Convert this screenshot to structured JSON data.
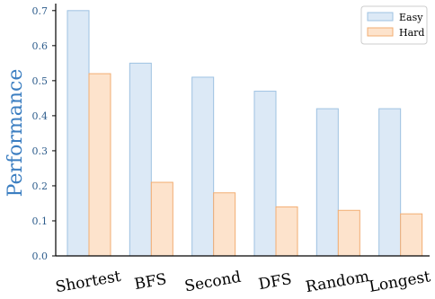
{
  "chart_data": {
    "type": "bar",
    "title": "",
    "xlabel": "",
    "ylabel": "Performance",
    "ylim": [
      0,
      0.72
    ],
    "yticks": [
      0.0,
      0.1,
      0.2,
      0.3,
      0.4,
      0.5,
      0.6,
      0.7
    ],
    "categories": [
      "Shortest",
      "BFS",
      "Second",
      "DFS",
      "Random",
      "Longest"
    ],
    "series": [
      {
        "name": "Easy",
        "values": [
          0.7,
          0.55,
          0.51,
          0.47,
          0.42,
          0.42
        ]
      },
      {
        "name": "Hard",
        "values": [
          0.52,
          0.21,
          0.18,
          0.14,
          0.13,
          0.12
        ]
      }
    ],
    "grid": false,
    "legend_position": "top-right",
    "colors": {
      "Easy_fill": "#dce9f6",
      "Easy_edge": "#9ec2e2",
      "Hard_fill": "#fde3cc",
      "Hard_edge": "#f2ad72",
      "axis_label": "#3b7ec1",
      "tick_label": "#2e5d8c"
    }
  }
}
